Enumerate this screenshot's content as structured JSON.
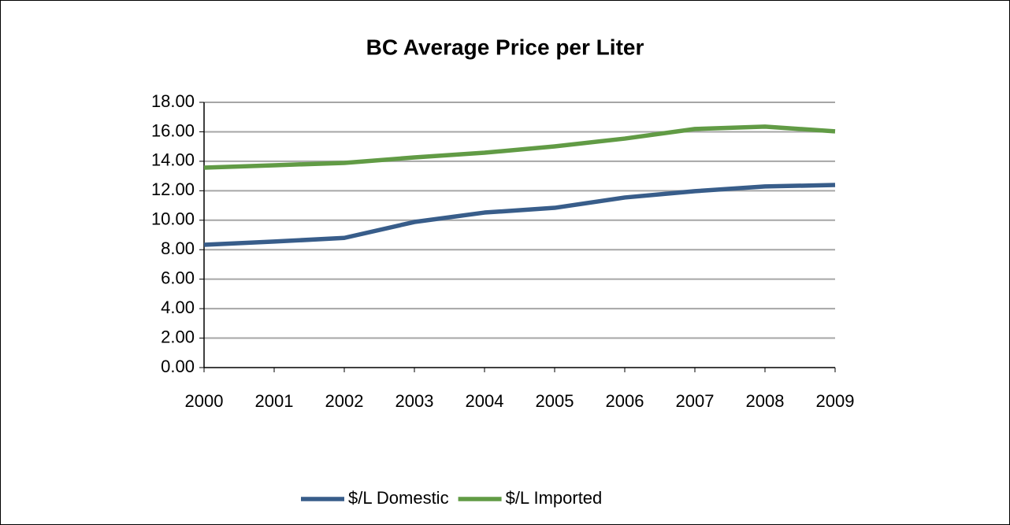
{
  "chart_data": {
    "type": "line",
    "title": "BC Average Price per Liter",
    "categories": [
      "2000",
      "2001",
      "2002",
      "2003",
      "2004",
      "2005",
      "2006",
      "2007",
      "2008",
      "2009"
    ],
    "series": [
      {
        "name": "$/L Domestic",
        "color": "#385d8a",
        "values": [
          8.33,
          8.55,
          8.8,
          9.88,
          10.52,
          10.84,
          11.54,
          11.97,
          12.29,
          12.39
        ]
      },
      {
        "name": "$/L Imported",
        "color": "#619b45",
        "values": [
          13.57,
          13.73,
          13.89,
          14.26,
          14.58,
          15.01,
          15.54,
          16.19,
          16.35,
          16.03
        ]
      }
    ],
    "ylim": [
      0,
      18
    ],
    "yticks": [
      {
        "value": 0,
        "label": "0.00"
      },
      {
        "value": 2,
        "label": "2.00"
      },
      {
        "value": 4,
        "label": "4.00"
      },
      {
        "value": 6,
        "label": "6.00"
      },
      {
        "value": 8,
        "label": "8.00"
      },
      {
        "value": 10,
        "label": "10.00"
      },
      {
        "value": 12,
        "label": "12.00"
      },
      {
        "value": 14,
        "label": "14.00"
      },
      {
        "value": 16,
        "label": "16.00"
      },
      {
        "value": 18,
        "label": "18.00"
      }
    ],
    "grid": true,
    "legend": "bottom"
  }
}
